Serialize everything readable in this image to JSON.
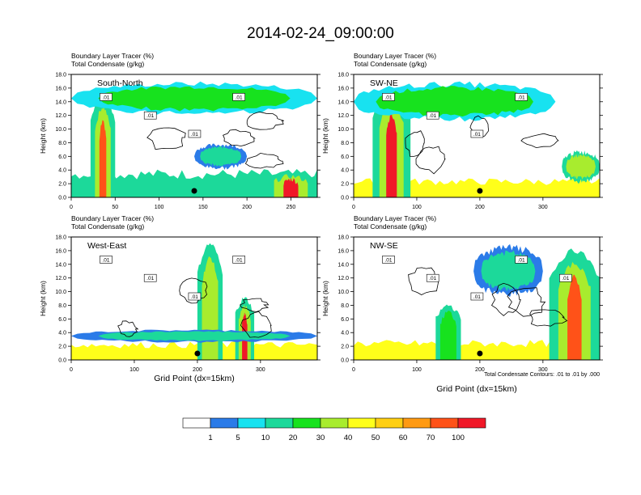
{
  "title": "2014-02-24_09:00:00",
  "colors": {
    "palette": [
      "#ffffff",
      "#2b7be8",
      "#18e2f0",
      "#1cd99a",
      "#17e21e",
      "#a8ec2e",
      "#ffff1a",
      "#ffcf12",
      "#ff9a12",
      "#ff5218",
      "#f01828"
    ],
    "contour": "#000000"
  },
  "chart_data": [
    {
      "type": "heatmap",
      "panel_label": "South-North",
      "title_lines": [
        "Boundary Layer Tracer    (%)",
        "Total Condensate    (g/kg)"
      ],
      "ylabel": "Height (km)",
      "xlabel": "",
      "xlim": [
        0,
        280
      ],
      "ylim": [
        0,
        18
      ],
      "xticks": [
        "0",
        "100",
        "200"
      ],
      "xtick_values": [
        0,
        100,
        200
      ],
      "xtick_labels": [
        "0",
        "50",
        "100",
        "150",
        "200",
        "250"
      ],
      "xtick_label_values": [
        0,
        50,
        100,
        150,
        200,
        250
      ],
      "yticks": [
        "0.0",
        "2.0",
        "4.0",
        "6.0",
        "8.0",
        "10.0",
        "12.0",
        "14.0",
        "16.0",
        "18.0"
      ],
      "contour_labels": [
        ".01",
        ".01",
        ".01",
        ".01"
      ],
      "marker_x": 140,
      "features": [
        {
          "kind": "layer",
          "x": [
            0,
            280
          ],
          "top": 1.2,
          "level": 9
        },
        {
          "kind": "layer",
          "x": [
            0,
            280
          ],
          "top": 2.2,
          "level": 6
        },
        {
          "kind": "layer",
          "x": [
            0,
            280
          ],
          "top": 3.4,
          "level": 3
        },
        {
          "kind": "column",
          "x": [
            22,
            50
          ],
          "top": 15,
          "level": 9
        },
        {
          "kind": "band",
          "x": [
            0,
            280
          ],
          "bottom": 12,
          "top": 17,
          "level": 4
        },
        {
          "kind": "blob",
          "x": [
            140,
            200
          ],
          "bottom": 4,
          "top": 8,
          "level": 3
        },
        {
          "kind": "column",
          "x": [
            220,
            280
          ],
          "top": 3.5,
          "level": 10
        }
      ]
    },
    {
      "type": "heatmap",
      "panel_label": "SW-NE",
      "title_lines": [
        "Boundary Layer Tracer    (%)",
        "Total Condensate    (g/kg)"
      ],
      "ylabel": "Height (km)",
      "xlabel": "",
      "xlim": [
        0,
        390
      ],
      "ylim": [
        0,
        18
      ],
      "xtick_labels": [
        "0",
        "100",
        "200",
        "300"
      ],
      "xtick_label_values": [
        0,
        100,
        200,
        300
      ],
      "yticks": [
        "0.0",
        "2.0",
        "4.0",
        "6.0",
        "8.0",
        "10.0",
        "12.0",
        "14.0",
        "16.0",
        "18.0"
      ],
      "contour_labels": [
        ".01",
        ".01",
        ".01",
        ".01"
      ],
      "marker_x": 200,
      "features": [
        {
          "kind": "layer",
          "x": [
            0,
            390
          ],
          "top": 1.3,
          "level": 9
        },
        {
          "kind": "layer",
          "x": [
            0,
            390
          ],
          "top": 2.3,
          "level": 6
        },
        {
          "kind": "column",
          "x": [
            30,
            90
          ],
          "top": 16,
          "level": 10
        },
        {
          "kind": "band",
          "x": [
            0,
            320
          ],
          "bottom": 11,
          "top": 17,
          "level": 4
        },
        {
          "kind": "blob",
          "x": [
            330,
            390
          ],
          "bottom": 2,
          "top": 7,
          "level": 5
        }
      ]
    },
    {
      "type": "heatmap",
      "panel_label": "West-East",
      "title_lines": [
        "Boundary Layer Tracer    (%)",
        "Total Condensate    (g/kg)"
      ],
      "ylabel": "Height (km)",
      "xlabel": "Grid Point (dx=15km)",
      "xlim": [
        0,
        390
      ],
      "ylim": [
        0,
        18
      ],
      "xtick_labels": [
        "0",
        "100",
        "200",
        "300"
      ],
      "xtick_label_values": [
        0,
        100,
        200,
        300
      ],
      "yticks": [
        "0.0",
        "2.0",
        "4.0",
        "6.0",
        "8.0",
        "10.0",
        "12.0",
        "14.0",
        "16.0",
        "18.0"
      ],
      "contour_labels": [
        ".01",
        ".01",
        ".01",
        ".01"
      ],
      "marker_x": 200,
      "features": [
        {
          "kind": "layer",
          "x": [
            0,
            390
          ],
          "top": 1.1,
          "level": 9
        },
        {
          "kind": "layer",
          "x": [
            0,
            390
          ],
          "top": 2.2,
          "level": 6
        },
        {
          "kind": "column",
          "x": [
            260,
            290
          ],
          "top": 9,
          "level": 10
        },
        {
          "kind": "column",
          "x": [
            200,
            240
          ],
          "top": 17,
          "level": 5
        },
        {
          "kind": "blob",
          "x": [
            0,
            390
          ],
          "bottom": 2.5,
          "top": 4.5,
          "level": 3
        }
      ]
    },
    {
      "type": "heatmap",
      "panel_label": "NW-SE",
      "title_lines": [
        "Boundary Layer Tracer    (%)",
        "Total Condensate    (g/kg)"
      ],
      "ylabel": "Height (km)",
      "xlabel": "Grid Point (dx=15km)",
      "xlim": [
        0,
        390
      ],
      "ylim": [
        0,
        18
      ],
      "xtick_labels": [
        "0",
        "100",
        "200",
        "300"
      ],
      "xtick_label_values": [
        0,
        100,
        200,
        300
      ],
      "yticks": [
        "0.0",
        "2.0",
        "4.0",
        "6.0",
        "8.0",
        "10.0",
        "12.0",
        "14.0",
        "16.0",
        "18.0"
      ],
      "contour_labels": [
        ".01",
        ".01",
        ".01",
        ".01",
        ".01"
      ],
      "marker_x": 200,
      "features": [
        {
          "kind": "layer",
          "x": [
            0,
            390
          ],
          "top": 1.3,
          "level": 9
        },
        {
          "kind": "layer",
          "x": [
            0,
            390
          ],
          "top": 2.4,
          "level": 6
        },
        {
          "kind": "column",
          "x": [
            310,
            390
          ],
          "top": 16,
          "level": 9
        },
        {
          "kind": "band",
          "x": [
            190,
            300
          ],
          "bottom": 9,
          "top": 17,
          "level": 3
        },
        {
          "kind": "column",
          "x": [
            130,
            170
          ],
          "top": 8,
          "level": 4
        }
      ],
      "footnote": "Total Condensate Contours: .01 to .01 by .000"
    }
  ],
  "colorbar": {
    "labels": [
      "1",
      "5",
      "10",
      "20",
      "30",
      "40",
      "50",
      "60",
      "70",
      "100"
    ]
  }
}
